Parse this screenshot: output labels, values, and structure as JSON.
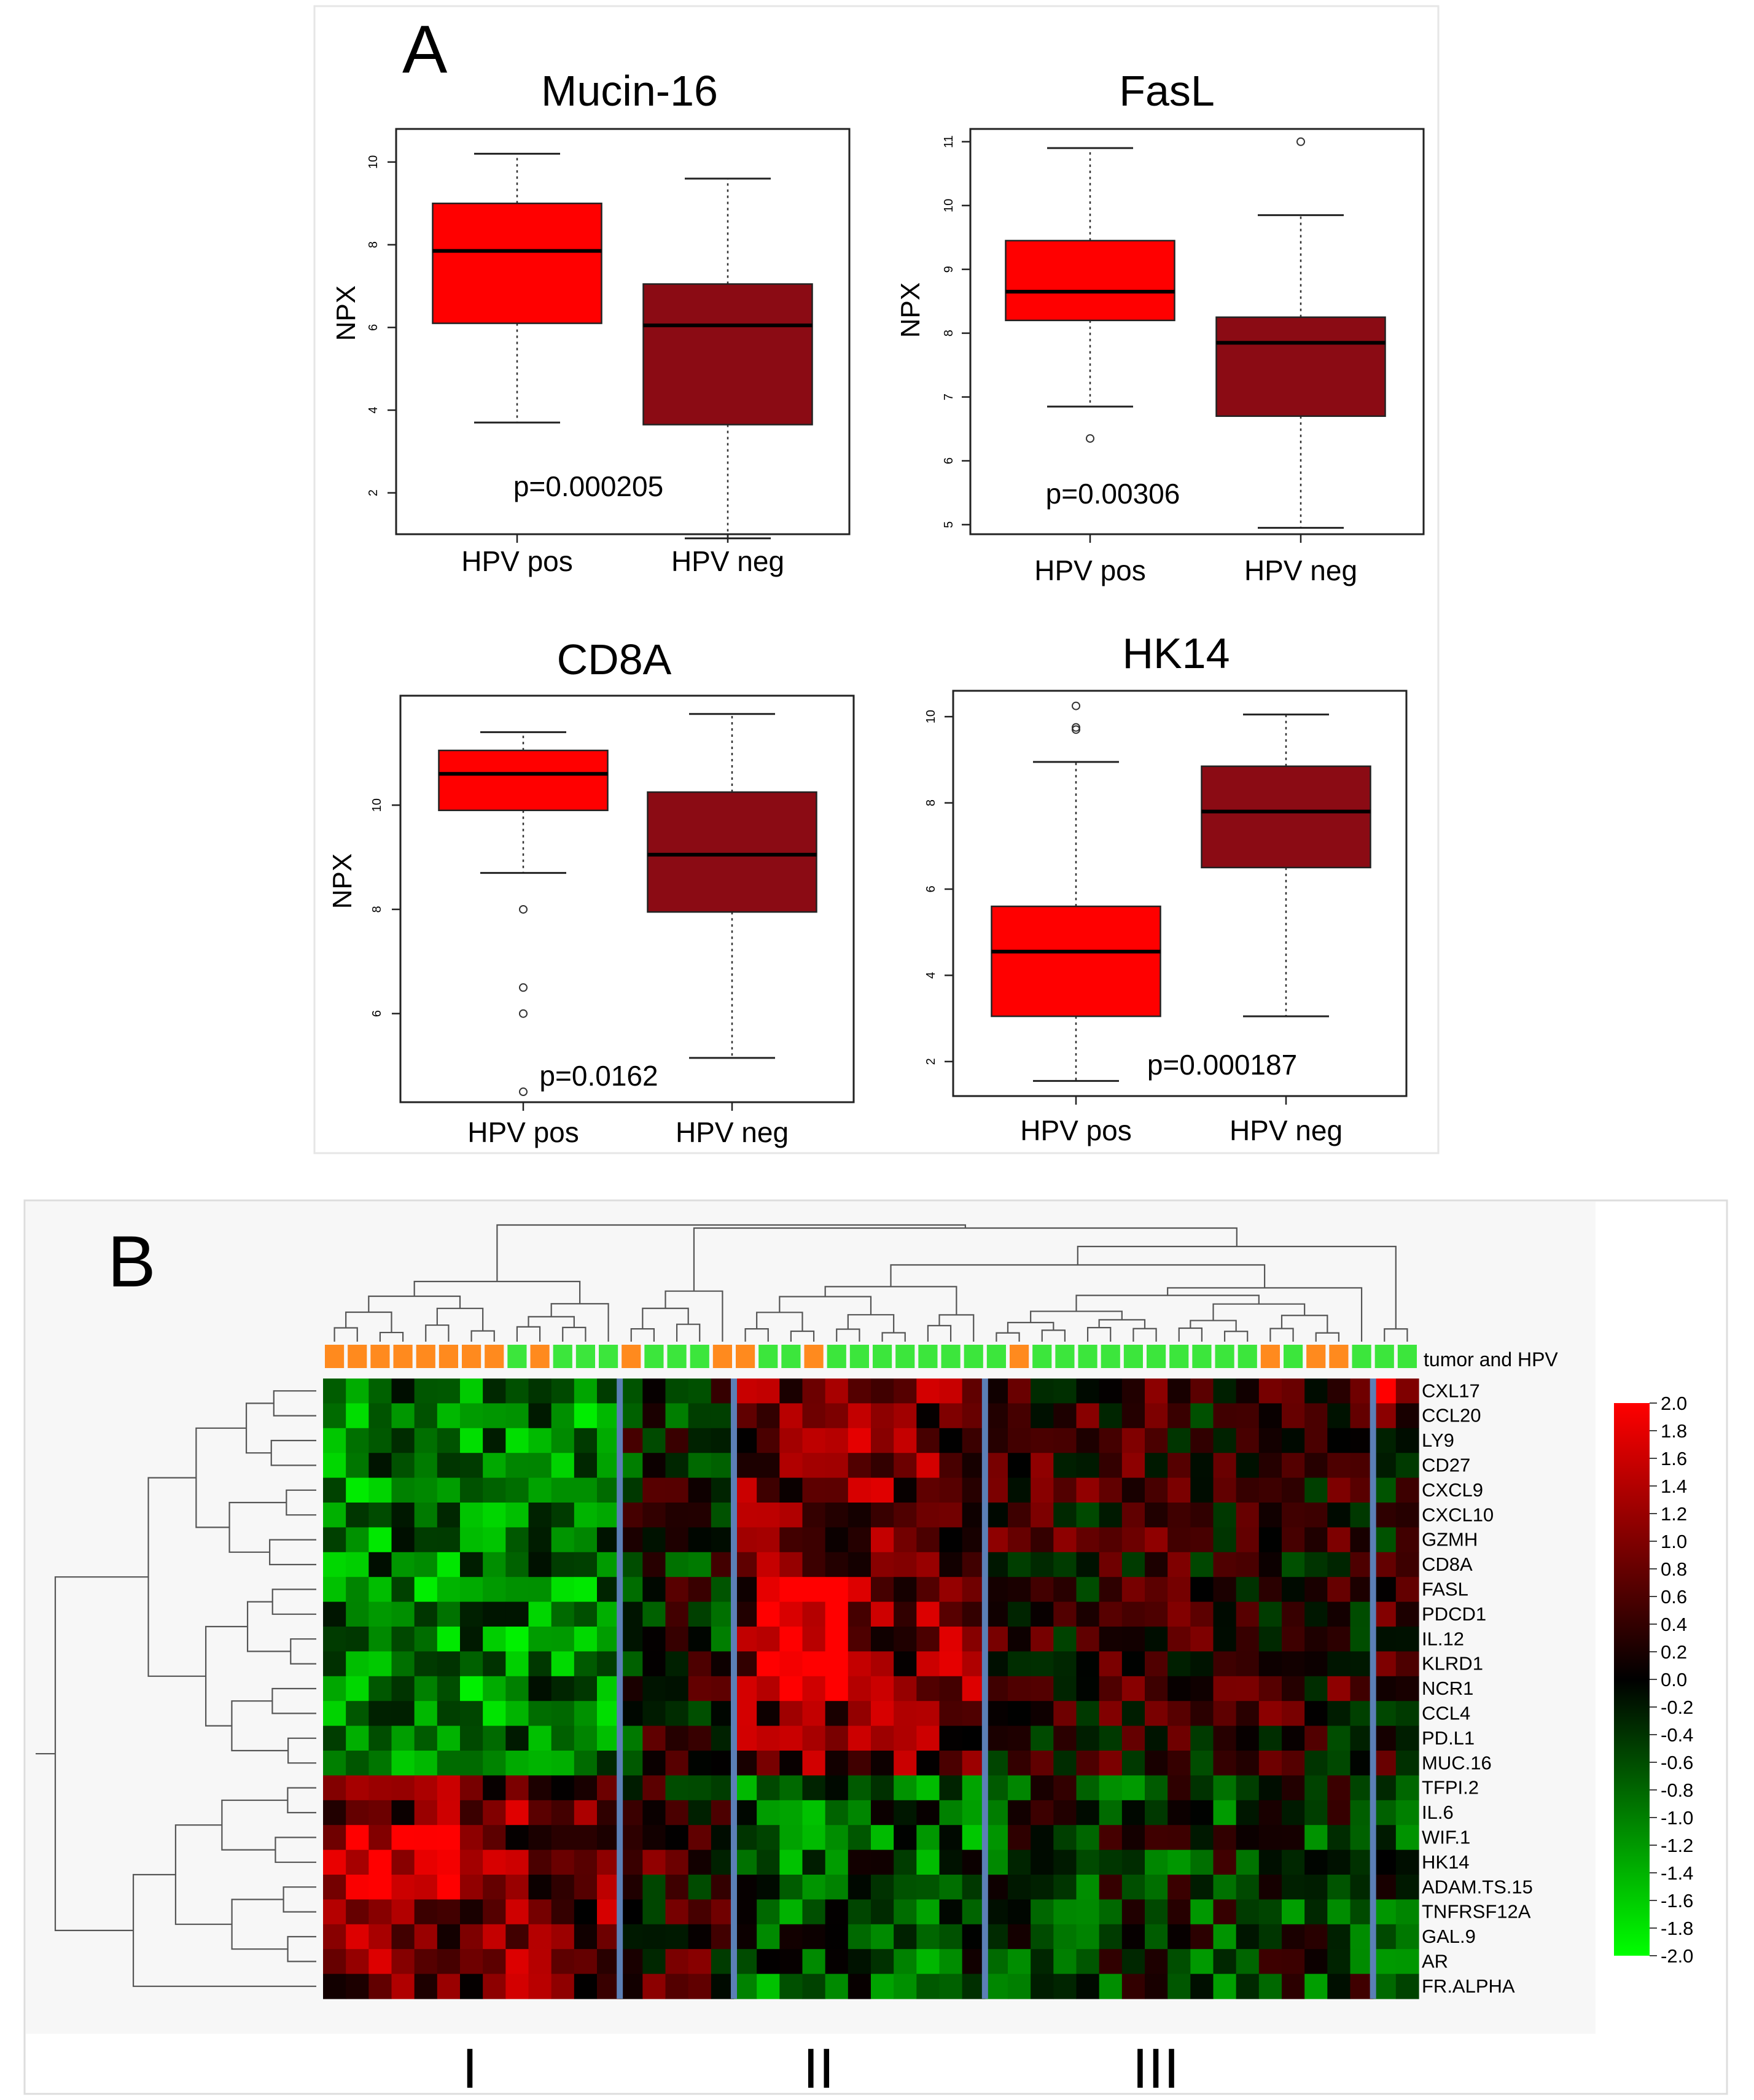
{
  "panel_a_label": "A",
  "panel_b_label": "B",
  "chart_data": [
    {
      "type": "boxplot",
      "title": "Mucin-16",
      "ylabel": "NPX",
      "categories": [
        "HPV pos",
        "HPV neg"
      ],
      "ylim": [
        1,
        10.8
      ],
      "yticks": [
        2,
        4,
        6,
        8,
        10
      ],
      "boxes": [
        {
          "name": "HPV pos",
          "color": "#ff0000",
          "whisker_low": 3.7,
          "q1": 6.1,
          "median": 7.85,
          "q3": 9.0,
          "whisker_high": 10.2,
          "outliers": []
        },
        {
          "name": "HPV neg",
          "color": "#8b0b14",
          "whisker_low": 0.9,
          "q1": 3.65,
          "median": 6.05,
          "q3": 7.05,
          "whisker_high": 9.6,
          "outliers": []
        }
      ],
      "annotation": "p=0.000205"
    },
    {
      "type": "boxplot",
      "title": "FasL",
      "ylabel": "NPX",
      "categories": [
        "HPV pos",
        "HPV neg"
      ],
      "ylim": [
        4.85,
        11.2
      ],
      "yticks": [
        5,
        6,
        7,
        8,
        9,
        10,
        11
      ],
      "boxes": [
        {
          "name": "HPV pos",
          "color": "#ff0000",
          "whisker_low": 6.85,
          "q1": 8.2,
          "median": 8.65,
          "q3": 9.45,
          "whisker_high": 10.9,
          "outliers": [
            6.35
          ]
        },
        {
          "name": "HPV neg",
          "color": "#8b0b14",
          "whisker_low": 4.95,
          "q1": 6.7,
          "median": 7.85,
          "q3": 8.25,
          "whisker_high": 9.85,
          "outliers": [
            11.0
          ]
        }
      ],
      "annotation": "p=0.00306"
    },
    {
      "type": "boxplot",
      "title": "CD8A",
      "ylabel": "NPX",
      "categories": [
        "HPV pos",
        "HPV neg"
      ],
      "ylim": [
        4.3,
        12.1
      ],
      "yticks": [
        6,
        8,
        10
      ],
      "boxes": [
        {
          "name": "HPV pos",
          "color": "#ff0000",
          "whisker_low": 8.7,
          "q1": 9.9,
          "median": 10.6,
          "q3": 11.05,
          "whisker_high": 11.4,
          "outliers": [
            8.0,
            6.5,
            6.0,
            4.5
          ]
        },
        {
          "name": "HPV neg",
          "color": "#8b0b14",
          "whisker_low": 5.15,
          "q1": 7.95,
          "median": 9.05,
          "q3": 10.25,
          "whisker_high": 11.75,
          "outliers": []
        }
      ],
      "annotation": "p=0.0162"
    },
    {
      "type": "boxplot",
      "title": "HK14",
      "ylabel": "",
      "categories": [
        "HPV pos",
        "HPV neg"
      ],
      "ylim": [
        1.2,
        10.6
      ],
      "yticks": [
        2,
        4,
        6,
        8,
        10
      ],
      "boxes": [
        {
          "name": "HPV pos",
          "color": "#ff0000",
          "whisker_low": 1.55,
          "q1": 3.05,
          "median": 4.55,
          "q3": 5.6,
          "whisker_high": 8.95,
          "outliers": [
            10.25,
            9.75,
            9.7
          ]
        },
        {
          "name": "HPV neg",
          "color": "#8b0b14",
          "whisker_low": 3.05,
          "q1": 6.5,
          "median": 7.8,
          "q3": 8.85,
          "whisker_high": 10.05,
          "outliers": []
        }
      ],
      "annotation": "p=0.000187"
    },
    {
      "type": "heatmap",
      "column_annotation_label": "tumor and HPV",
      "n_columns": 48,
      "column_annotation": [
        "o",
        "o",
        "o",
        "o",
        "o",
        "o",
        "o",
        "o",
        "g",
        "o",
        "g",
        "g",
        "g",
        "o",
        "g",
        "g",
        "g",
        "o",
        "o",
        "g",
        "g",
        "o",
        "g",
        "g",
        "g",
        "g",
        "g",
        "g",
        "g",
        "g",
        "o",
        "g",
        "g",
        "g",
        "g",
        "g",
        "g",
        "g",
        "g",
        "g",
        "g",
        "o",
        "g",
        "o",
        "o",
        "g",
        "g",
        "g"
      ],
      "annotation_colors": {
        "o": "#ff8a1e",
        "g": "#3ce63c"
      },
      "row_labels": [
        "CXL17",
        "CCL20",
        "LY9",
        "CD27",
        "CXCL9",
        "CXCL10",
        "GZMH",
        "CD8A",
        "FASL",
        "PDCD1",
        "IL.12",
        "KLRD1",
        "NCR1",
        "CCL4",
        "PD.L1",
        "MUC.16",
        "TFPI.2",
        "IL.6",
        "WIF.1",
        "HK14",
        "ADAM.TS.15",
        "TNFRSF12A",
        "GAL.9",
        "AR",
        "FR.ALPHA"
      ],
      "cluster_separators_after_column": [
        12,
        17,
        28,
        45
      ],
      "cluster_labels": [
        "I",
        "II",
        "III"
      ],
      "colorbar": {
        "min": -2.0,
        "max": 2.0,
        "tick_labels": [
          "2.0",
          "1.8",
          "1.6",
          "1.4",
          "1.2",
          "1.0",
          "0.8",
          "0.6",
          "0.4",
          "0.2",
          "0.0",
          "-0.2",
          "-0.4",
          "-0.6",
          "-0.8",
          "-1.0",
          "-1.2",
          "-1.4",
          "-1.6",
          "-1.8",
          "-2.0"
        ],
        "high_color": "#ff0000",
        "mid_color": "#000000",
        "low_color": "#00ff00"
      }
    }
  ]
}
